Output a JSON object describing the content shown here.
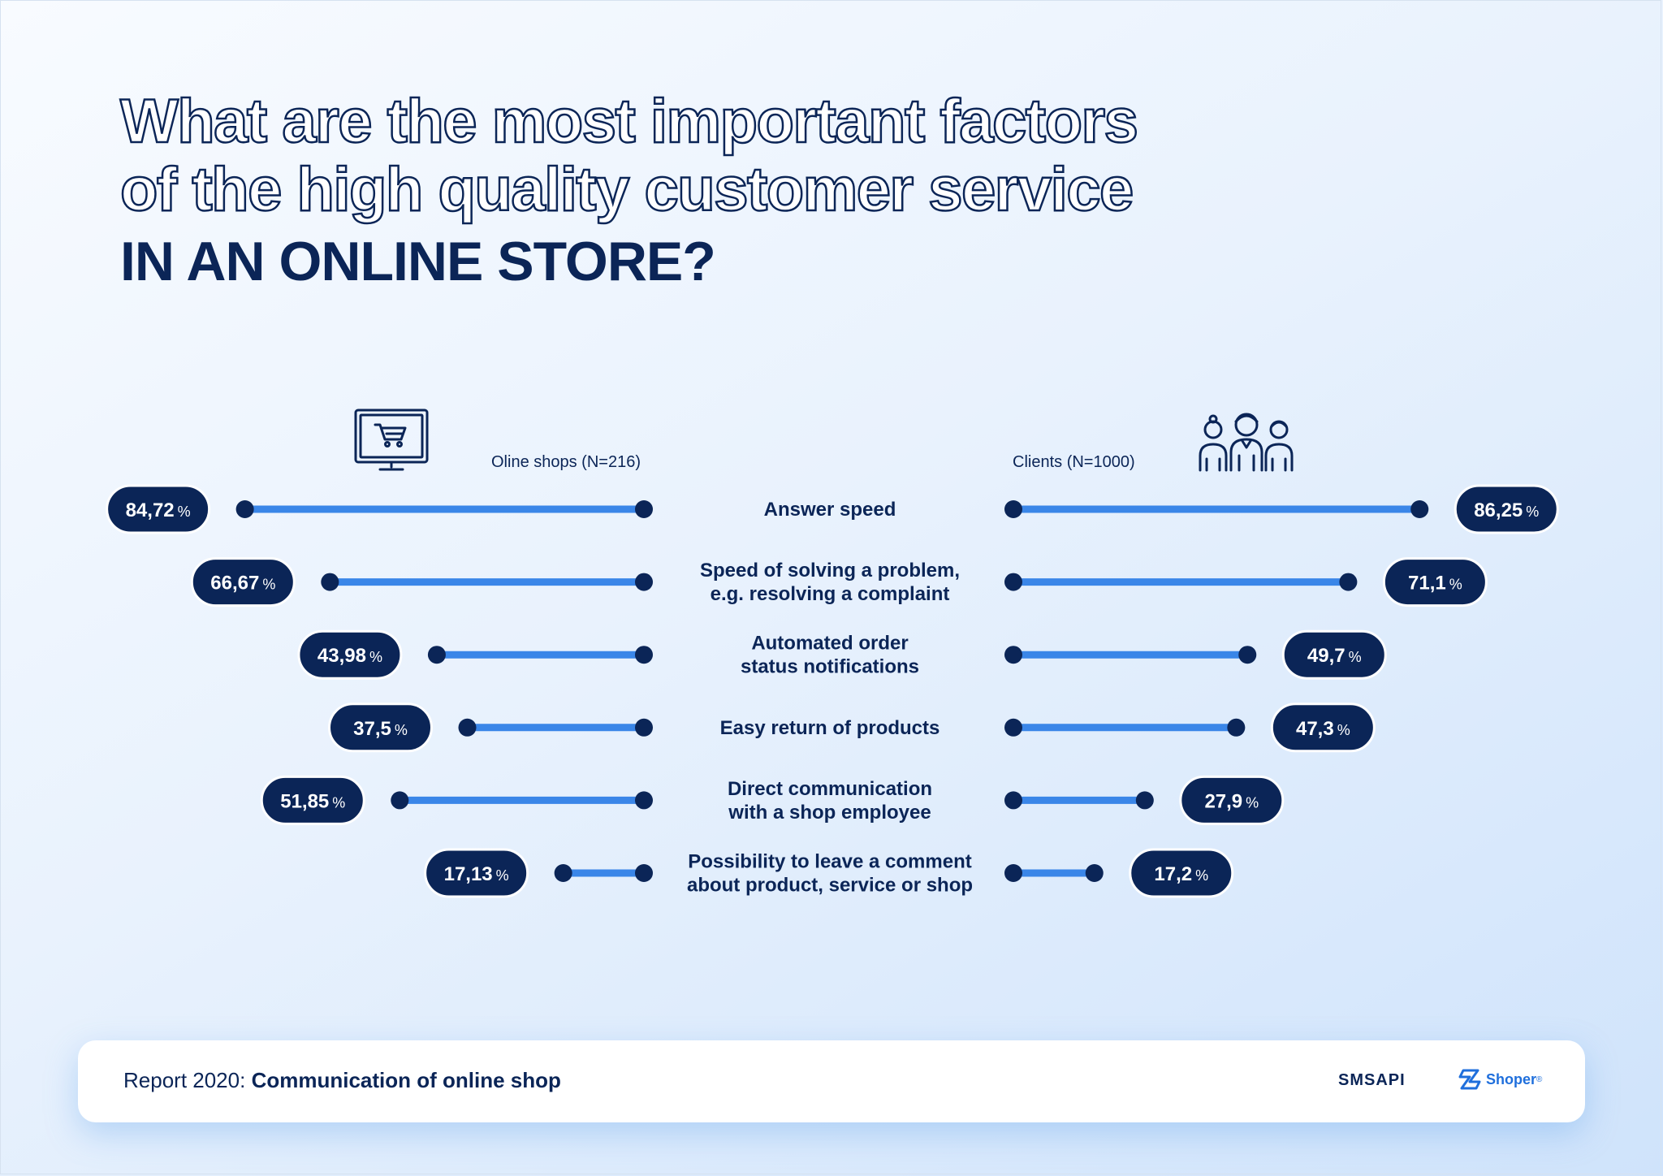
{
  "title": {
    "line1": "What are the most important factors",
    "line2": "of the high quality customer service",
    "line3": "IN AN ONLINE STORE?"
  },
  "groups": {
    "left_label": "Oline shops (N=216)",
    "right_label": "Clients (N=1000)",
    "left_icon": "shopping-cart-monitor-icon",
    "right_icon": "people-group-icon"
  },
  "colors": {
    "navy": "#0b2557",
    "bar_blue": "#3a86e8",
    "pill_border": "#ffffff"
  },
  "chart_data": {
    "type": "bar",
    "layout": "diverging",
    "unit": "%",
    "categories": [
      [
        "Answer speed"
      ],
      [
        "Speed of solving a problem,",
        "e.g. resolving a complaint"
      ],
      [
        "Automated order",
        "status notifications"
      ],
      [
        "Easy return of products"
      ],
      [
        "Direct communication",
        "with a shop employee"
      ],
      [
        "Possibility to leave a comment",
        "about product, service or shop"
      ]
    ],
    "series": [
      {
        "name": "Oline shops (N=216)",
        "side": "left",
        "values": [
          84.72,
          66.67,
          43.98,
          37.5,
          51.85,
          17.13
        ],
        "labels": [
          "84,72",
          "66,67",
          "43,98",
          "37,5",
          "51,85",
          "17,13"
        ]
      },
      {
        "name": "Clients (N=1000)",
        "side": "right",
        "values": [
          86.25,
          71.1,
          49.7,
          47.3,
          27.9,
          17.2
        ],
        "labels": [
          "86,25",
          "71,1",
          "49,7",
          "47,3",
          "27,9",
          "17,2"
        ]
      }
    ],
    "grid": false
  },
  "footer": {
    "report_prefix": "Report 2020: ",
    "report_title": "Communication of online shop",
    "logo_1": "SMSAPI",
    "logo_2": "Shoper",
    "logo_2_mark": "®"
  }
}
